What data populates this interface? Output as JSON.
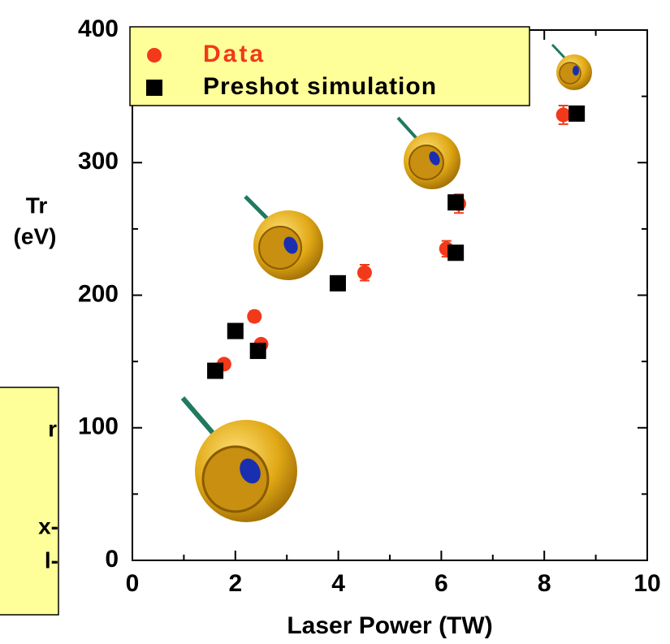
{
  "chart_data": {
    "type": "scatter",
    "xlabel": "Laser Power (TW)",
    "ylabel_lines": [
      "Tr",
      "(eV)"
    ],
    "xlim": [
      0,
      10
    ],
    "xticks": [
      0,
      2,
      4,
      6,
      8,
      10
    ],
    "xminor": [
      1,
      3,
      5,
      7,
      9
    ],
    "ylim": [
      0,
      400
    ],
    "yticks": [
      0,
      100,
      200,
      300,
      400
    ],
    "yminor": [
      50,
      150,
      250,
      350
    ],
    "legend": "upper left",
    "series": [
      {
        "name": "Data",
        "color": "#f2391a",
        "marker": "circle",
        "x": [
          1.78,
          2.37,
          2.5,
          4.51,
          6.1,
          6.34,
          8.37
        ],
        "values": [
          148,
          184,
          163,
          217,
          235,
          269,
          336
        ],
        "errors": [
          3,
          4,
          3,
          6,
          6,
          7,
          7
        ]
      },
      {
        "name": "Preshot simulation",
        "color": "#000000",
        "marker": "square",
        "x": [
          1.61,
          2.0,
          2.44,
          3.99,
          6.28,
          6.28,
          8.63
        ],
        "values": [
          143,
          173,
          158,
          209,
          270,
          232,
          337
        ]
      }
    ],
    "side_note_lines": [
      "r",
      "x-",
      "l-"
    ]
  }
}
